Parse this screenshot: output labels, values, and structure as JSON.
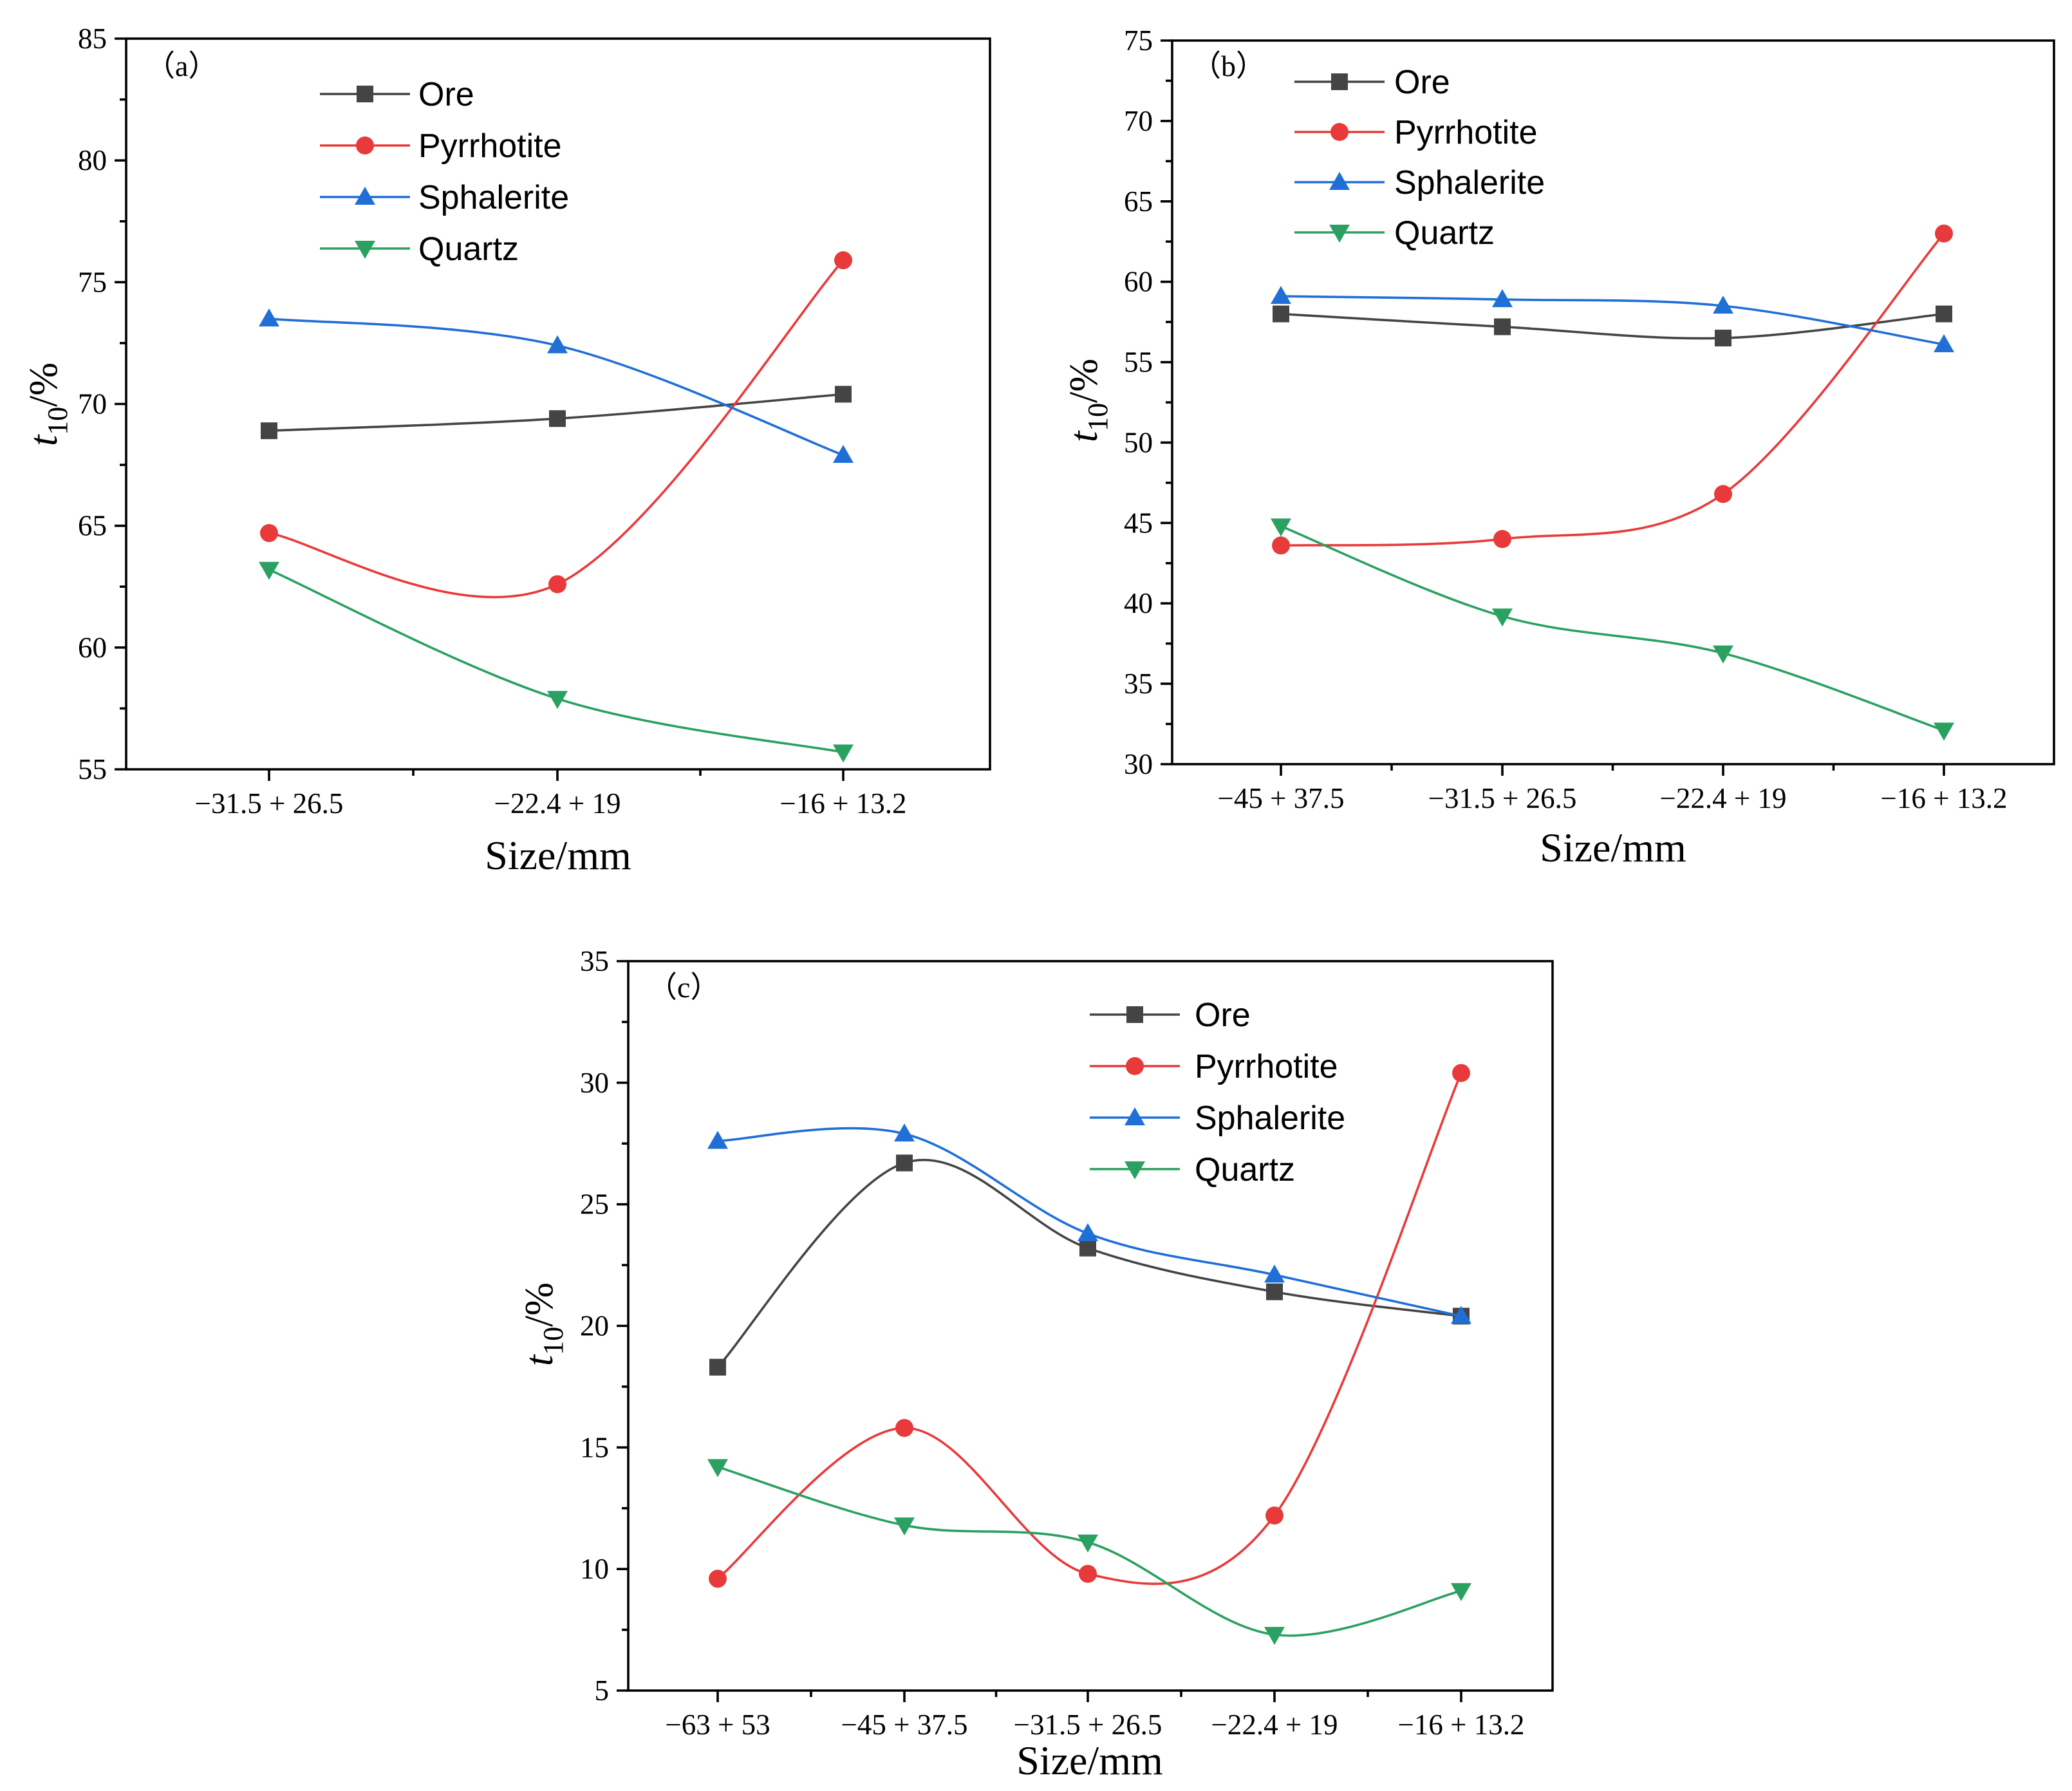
{
  "colors": {
    "Ore": "#444444",
    "Pyrrhotite": "#e83a3a",
    "Sphalerite": "#1f6fd6",
    "Quartz": "#2aa160"
  },
  "markers": {
    "Ore": "square",
    "Pyrrhotite": "circle",
    "Sphalerite": "triangle-up",
    "Quartz": "triangle-down"
  },
  "chart_data": [
    {
      "id": "a",
      "type": "line",
      "panel_label": "（a）",
      "xlabel": "Size/mm",
      "ylabel": {
        "main": "t",
        "sub": "10",
        "rest": "/%"
      },
      "categories": [
        "−31.5 + 26.5",
        "−22.4 + 19",
        "−16 + 13.2"
      ],
      "ylim": [
        55,
        85
      ],
      "yticks": [
        55,
        60,
        65,
        70,
        75,
        80,
        85
      ],
      "legend_position": "top-center",
      "series": [
        {
          "name": "Ore",
          "values": [
            68.9,
            69.4,
            70.4
          ]
        },
        {
          "name": "Pyrrhotite",
          "values": [
            64.7,
            62.6,
            75.9
          ]
        },
        {
          "name": "Sphalerite",
          "values": [
            73.5,
            72.4,
            67.9
          ]
        },
        {
          "name": "Quartz",
          "values": [
            63.2,
            57.9,
            55.7
          ]
        }
      ]
    },
    {
      "id": "b",
      "type": "line",
      "panel_label": "（b）",
      "xlabel": "Size/mm",
      "ylabel": {
        "main": "t",
        "sub": "10",
        "rest": "/%"
      },
      "categories": [
        "−45 + 37.5",
        "−31.5 + 26.5",
        "−22.4 + 19",
        "−16 + 13.2"
      ],
      "ylim": [
        30,
        75
      ],
      "yticks": [
        30,
        35,
        40,
        45,
        50,
        55,
        60,
        65,
        70,
        75
      ],
      "legend_position": "top-left",
      "series": [
        {
          "name": "Ore",
          "values": [
            58.0,
            57.2,
            56.5,
            58.0
          ]
        },
        {
          "name": "Pyrrhotite",
          "values": [
            43.6,
            44.0,
            46.8,
            63.0
          ]
        },
        {
          "name": "Sphalerite",
          "values": [
            59.1,
            58.9,
            58.5,
            56.1
          ]
        },
        {
          "name": "Quartz",
          "values": [
            44.8,
            39.2,
            36.9,
            32.1
          ]
        }
      ]
    },
    {
      "id": "c",
      "type": "line",
      "panel_label": "（c）",
      "xlabel": "Size/mm",
      "ylabel": {
        "main": "t",
        "sub": "10",
        "rest": "/%"
      },
      "categories": [
        "−63 + 53",
        "−45 + 37.5",
        "−31.5 + 26.5",
        "−22.4 + 19",
        "−16 + 13.2"
      ],
      "ylim": [
        5,
        35
      ],
      "yticks": [
        5,
        10,
        15,
        20,
        25,
        30,
        35
      ],
      "legend_position": "top-center",
      "series": [
        {
          "name": "Ore",
          "values": [
            18.3,
            26.7,
            23.2,
            21.4,
            20.4
          ]
        },
        {
          "name": "Pyrrhotite",
          "values": [
            9.6,
            15.8,
            9.8,
            12.2,
            30.4
          ]
        },
        {
          "name": "Sphalerite",
          "values": [
            27.6,
            27.9,
            23.8,
            22.1,
            20.4
          ]
        },
        {
          "name": "Quartz",
          "values": [
            14.2,
            11.8,
            11.1,
            7.3,
            9.1
          ]
        }
      ]
    }
  ]
}
